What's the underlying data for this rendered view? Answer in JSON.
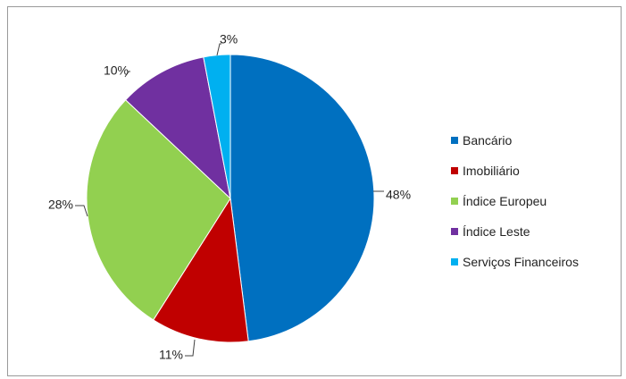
{
  "chart_data": {
    "type": "pie",
    "title": "",
    "legend_position": "right",
    "categories": [
      "Bancário",
      "Imobiliário",
      "Índice Europeu",
      "Índice Leste",
      "Serviços Financeiros"
    ],
    "values": [
      48,
      11,
      28,
      10,
      3
    ],
    "value_labels": [
      "48%",
      "11%",
      "28%",
      "10%",
      "3%"
    ],
    "colors": [
      "#0070C0",
      "#C00000",
      "#92D050",
      "#7030A0",
      "#00B0F0"
    ],
    "start_angle_deg": 0,
    "direction": "clockwise"
  }
}
